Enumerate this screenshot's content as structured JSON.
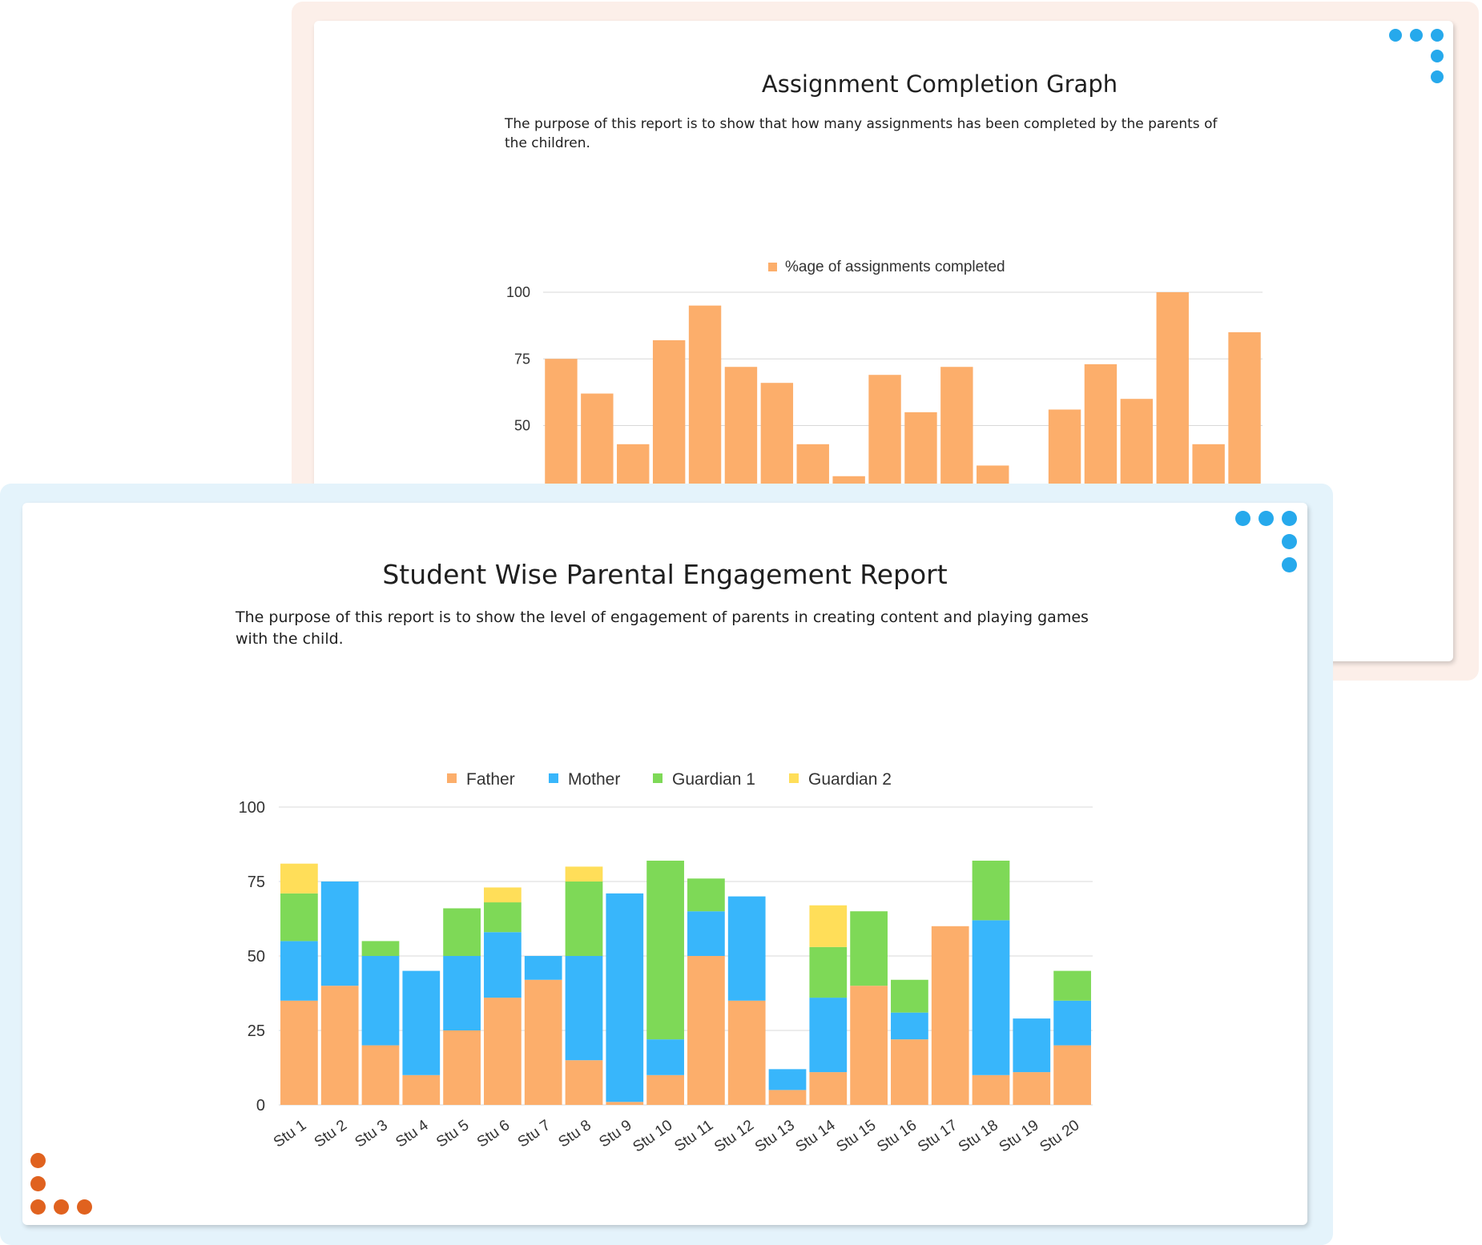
{
  "colors": {
    "back_frame": "#fcefe9",
    "front_frame": "#e4f3fb",
    "dot_blue": "#26a9ec",
    "dot_orange": "#e0621f",
    "father": "#fcae6b",
    "mother": "#38b6fb",
    "guardian1": "#7ed957",
    "guardian2": "#ffde59",
    "gridline": "#d8d8d8",
    "axis_text": "#333333"
  },
  "back_card": {
    "title": "Assignment Completion Graph",
    "description": "The purpose of this report is to show that how many assignments has been completed by the parents of the children.",
    "chart_data": {
      "type": "bar",
      "series": [
        {
          "name": "%age of assignments completed",
          "color": "#fcae6b",
          "values": [
            75,
            62,
            43,
            82,
            95,
            72,
            66,
            43,
            31,
            69,
            55,
            72,
            35,
            0,
            56,
            73,
            60,
            100,
            43,
            85
          ]
        }
      ],
      "yticks": [
        50,
        75,
        100
      ],
      "ylim": [
        0,
        100
      ],
      "legend": "top"
    }
  },
  "front_card": {
    "title": "Student Wise Parental Engagement Report",
    "description": "The purpose of this report is to show the level of engagement of parents in creating content and playing games with the child.",
    "chart_data": {
      "type": "bar",
      "stacked": true,
      "categories": [
        "Stu 1",
        "Stu 2",
        "Stu 3",
        "Stu 4",
        "Stu 5",
        "Stu 6",
        "Stu 7",
        "Stu 8",
        "Stu 9",
        "Stu 10",
        "Stu 11",
        "Stu 12",
        "Stu 13",
        "Stu 14",
        "Stu 15",
        "Stu 16",
        "Stu 17",
        "Stu 18",
        "Stu 19",
        "Stu 20"
      ],
      "series": [
        {
          "name": "Father",
          "color": "#fcae6b",
          "values": [
            35,
            40,
            20,
            10,
            25,
            36,
            42,
            15,
            1,
            10,
            50,
            35,
            5,
            11,
            40,
            22,
            60,
            10,
            11,
            20
          ]
        },
        {
          "name": "Mother",
          "color": "#38b6fb",
          "values": [
            20,
            35,
            30,
            35,
            25,
            22,
            8,
            35,
            70,
            12,
            15,
            35,
            7,
            25,
            0,
            9,
            0,
            52,
            18,
            15
          ]
        },
        {
          "name": "Guardian 1",
          "color": "#7ed957",
          "values": [
            16,
            0,
            5,
            0,
            16,
            10,
            0,
            25,
            0,
            60,
            11,
            0,
            0,
            17,
            25,
            11,
            0,
            20,
            0,
            10
          ]
        },
        {
          "name": "Guardian 2",
          "color": "#ffde59",
          "values": [
            10,
            0,
            0,
            0,
            0,
            5,
            0,
            5,
            0,
            0,
            0,
            0,
            0,
            14,
            0,
            0,
            0,
            0,
            0,
            0
          ]
        }
      ],
      "yticks": [
        0,
        25,
        50,
        75,
        100
      ],
      "ylim": [
        0,
        100
      ],
      "legend": "top"
    }
  }
}
